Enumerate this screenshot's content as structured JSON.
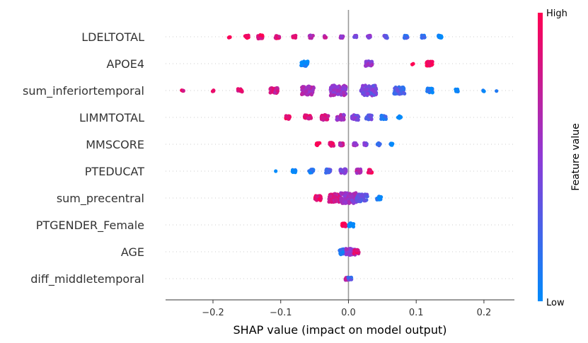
{
  "chart_data": {
    "type": "scatter",
    "subtype": "shap-beeswarm",
    "title": "",
    "xlabel": "SHAP value (impact on model output)",
    "xlim": [
      -0.27,
      0.245
    ],
    "xticks": [
      -0.2,
      -0.1,
      0.0,
      0.1,
      0.2
    ],
    "xtick_labels": [
      "−0.2",
      "−0.1",
      "0.0",
      "0.1",
      "0.2"
    ],
    "zero_line": true,
    "colorbar": {
      "label": "Feature value",
      "high_label": "High",
      "low_label": "Low",
      "high_color": "#ff0052",
      "mid_color": "#8f3ad6",
      "low_color": "#008bfb"
    },
    "features": [
      {
        "name": "LDELTOTAL",
        "clusters": [
          {
            "x": -0.175,
            "n": 4,
            "v": 0.95
          },
          {
            "x": -0.15,
            "n": 16,
            "v": 0.95
          },
          {
            "x": -0.13,
            "n": 22,
            "v": 0.9
          },
          {
            "x": -0.105,
            "n": 18,
            "v": 0.85
          },
          {
            "x": -0.08,
            "n": 10,
            "v": 0.8
          },
          {
            "x": -0.055,
            "n": 14,
            "v": 0.7
          },
          {
            "x": -0.035,
            "n": 8,
            "v": 0.65
          },
          {
            "x": -0.01,
            "n": 10,
            "v": 0.55
          },
          {
            "x": 0.01,
            "n": 8,
            "v": 0.5
          },
          {
            "x": 0.03,
            "n": 12,
            "v": 0.45
          },
          {
            "x": 0.055,
            "n": 12,
            "v": 0.35
          },
          {
            "x": 0.085,
            "n": 12,
            "v": 0.25
          },
          {
            "x": 0.11,
            "n": 14,
            "v": 0.15
          },
          {
            "x": 0.135,
            "n": 16,
            "v": 0.05
          }
        ]
      },
      {
        "name": "APOE4",
        "clusters": [
          {
            "x": -0.065,
            "n": 34,
            "v": 0.02
          },
          {
            "x": 0.03,
            "n": 34,
            "v": 0.5
          },
          {
            "x": 0.095,
            "n": 2,
            "v": 1.0
          },
          {
            "x": 0.12,
            "n": 30,
            "v": 1.0
          }
        ]
      },
      {
        "name": "sum_inferiortemporal",
        "clusters": [
          {
            "x": -0.245,
            "n": 5,
            "v": 0.9
          },
          {
            "x": -0.2,
            "n": 3,
            "v": 0.9
          },
          {
            "x": -0.16,
            "n": 18,
            "v": 0.85
          },
          {
            "x": -0.11,
            "n": 40,
            "v": 0.8
          },
          {
            "x": -0.06,
            "n": 70,
            "v": 0.65
          },
          {
            "x": -0.015,
            "n": 90,
            "v": 0.55
          },
          {
            "x": 0.03,
            "n": 90,
            "v": 0.4
          },
          {
            "x": 0.075,
            "n": 60,
            "v": 0.25
          },
          {
            "x": 0.12,
            "n": 30,
            "v": 0.1
          },
          {
            "x": 0.16,
            "n": 10,
            "v": 0.0
          },
          {
            "x": 0.2,
            "n": 3,
            "v": 0.0
          },
          {
            "x": 0.22,
            "n": 1,
            "v": 0.0
          }
        ]
      },
      {
        "name": "LIMMTOTAL",
        "clusters": [
          {
            "x": -0.09,
            "n": 20,
            "v": 0.95
          },
          {
            "x": -0.06,
            "n": 32,
            "v": 0.85
          },
          {
            "x": -0.035,
            "n": 36,
            "v": 0.75
          },
          {
            "x": -0.012,
            "n": 40,
            "v": 0.6
          },
          {
            "x": 0.01,
            "n": 36,
            "v": 0.45
          },
          {
            "x": 0.03,
            "n": 30,
            "v": 0.3
          },
          {
            "x": 0.052,
            "n": 24,
            "v": 0.15
          },
          {
            "x": 0.075,
            "n": 12,
            "v": 0.05
          }
        ]
      },
      {
        "name": "MMSCORE",
        "clusters": [
          {
            "x": -0.045,
            "n": 12,
            "v": 0.95
          },
          {
            "x": -0.025,
            "n": 20,
            "v": 0.85
          },
          {
            "x": -0.01,
            "n": 14,
            "v": 0.7
          },
          {
            "x": 0.01,
            "n": 12,
            "v": 0.55
          },
          {
            "x": 0.025,
            "n": 12,
            "v": 0.4
          },
          {
            "x": 0.045,
            "n": 12,
            "v": 0.2
          },
          {
            "x": 0.063,
            "n": 10,
            "v": 0.05
          }
        ]
      },
      {
        "name": "PTEDUCAT",
        "clusters": [
          {
            "x": -0.108,
            "n": 1,
            "v": 0.0
          },
          {
            "x": -0.08,
            "n": 14,
            "v": 0.05
          },
          {
            "x": -0.055,
            "n": 20,
            "v": 0.15
          },
          {
            "x": -0.03,
            "n": 24,
            "v": 0.3
          },
          {
            "x": -0.008,
            "n": 28,
            "v": 0.45
          },
          {
            "x": 0.015,
            "n": 24,
            "v": 0.65
          },
          {
            "x": 0.032,
            "n": 18,
            "v": 0.95
          }
        ]
      },
      {
        "name": "sum_precentral",
        "clusters": [
          {
            "x": -0.045,
            "n": 30,
            "v": 0.9
          },
          {
            "x": -0.02,
            "n": 70,
            "v": 0.8
          },
          {
            "x": 0.0,
            "n": 90,
            "v": 0.55
          },
          {
            "x": 0.02,
            "n": 60,
            "v": 0.3
          },
          {
            "x": 0.045,
            "n": 20,
            "v": 0.05
          }
        ]
      },
      {
        "name": "PTGENDER_Female",
        "clusters": [
          {
            "x": -0.007,
            "n": 16,
            "v": 1.0
          },
          {
            "x": 0.004,
            "n": 22,
            "v": 0.0
          }
        ]
      },
      {
        "name": "AGE",
        "clusters": [
          {
            "x": -0.008,
            "n": 40,
            "v": 0.15
          },
          {
            "x": 0.003,
            "n": 50,
            "v": 0.5
          },
          {
            "x": 0.012,
            "n": 25,
            "v": 0.85
          }
        ]
      },
      {
        "name": "diff_middletemporal",
        "clusters": [
          {
            "x": -0.002,
            "n": 14,
            "v": 0.7
          },
          {
            "x": 0.002,
            "n": 14,
            "v": 0.3
          }
        ]
      }
    ]
  }
}
